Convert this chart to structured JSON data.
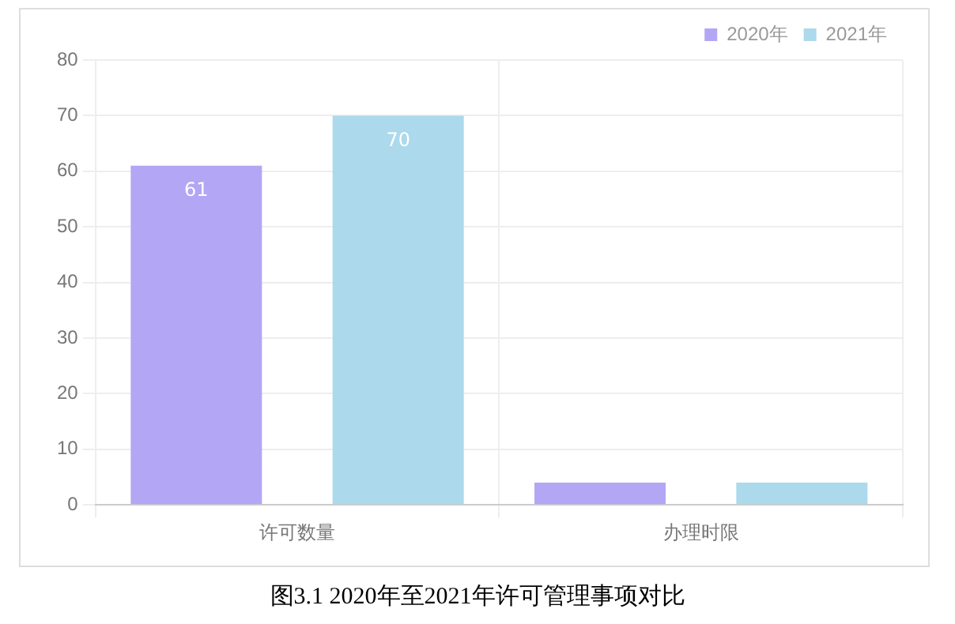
{
  "chart_data": {
    "type": "bar",
    "title": "图3.1  2020年至2021年许可管理事项对比",
    "categories": [
      "许可数量",
      "办理时限"
    ],
    "series": [
      {
        "name": "2020年",
        "color": "#b3a6f4",
        "values": [
          61,
          4
        ],
        "value_labels": [
          "61",
          null
        ]
      },
      {
        "name": "2021年",
        "color": "#acd9ec",
        "values": [
          70,
          4
        ],
        "value_labels": [
          "70",
          null
        ]
      }
    ],
    "ylim": [
      0,
      80
    ],
    "yticks": [
      0,
      10,
      20,
      30,
      40,
      50,
      60,
      70,
      80
    ],
    "grid": true,
    "legend": "top right"
  }
}
